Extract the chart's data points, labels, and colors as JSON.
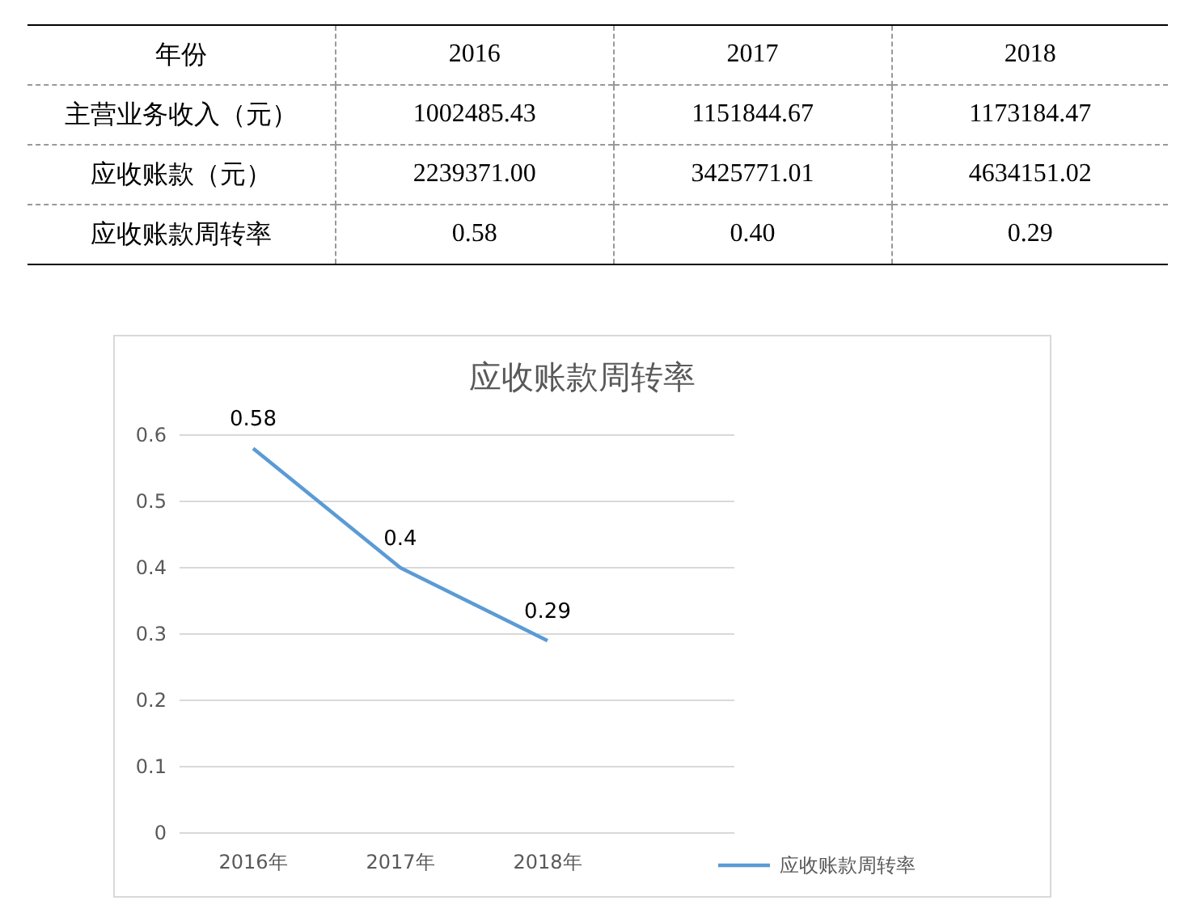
{
  "chart_data": [
    {
      "type": "other",
      "annotations": [
        "年份",
        "2016",
        "2017",
        "2018",
        "主营业务收入（元）",
        "1002485.43",
        "1151844.67",
        "1173184.47",
        "应收账款（元）",
        "2239371.00",
        "3425771.01",
        "4634151.02",
        "应收账款周转率",
        "0.58",
        "0.40",
        "0.29"
      ]
    },
    {
      "type": "line",
      "title": "应收账款周转率",
      "categories": [
        "2016年",
        "2017年",
        "2018年"
      ],
      "series": [
        {
          "name": "应收账款周转率",
          "color": "#5b9bd5",
          "values": [
            0.58,
            0.4,
            0.29
          ]
        }
      ],
      "ylim": [
        0,
        0.6
      ],
      "yticks": [
        0,
        0.1,
        0.2,
        0.3,
        0.4,
        0.5,
        0.6
      ],
      "grid": "y",
      "legend": "right",
      "data_labels": true,
      "marker": "none",
      "line_style": "solid"
    }
  ]
}
